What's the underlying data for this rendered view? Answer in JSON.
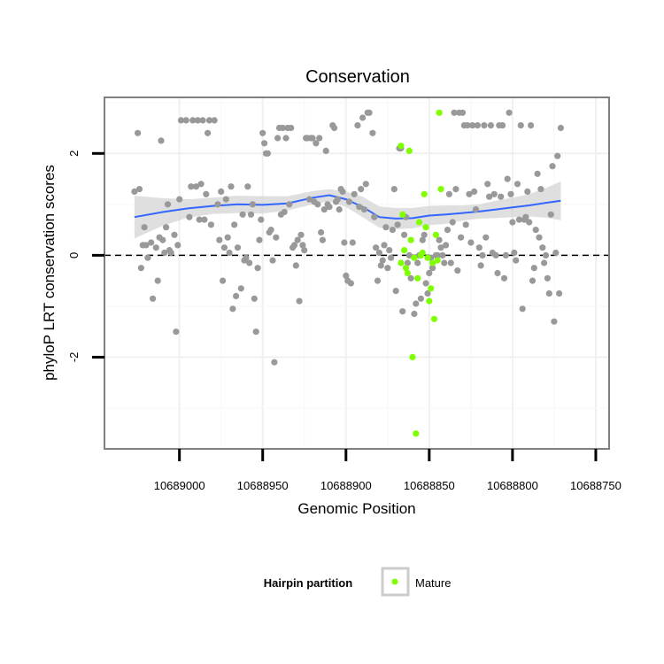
{
  "chart_data": {
    "type": "scatter",
    "title": "Conservation",
    "xlabel": "Genomic Position",
    "ylabel": "phyloP LRT conservation scores",
    "x_reversed": true,
    "xlim": [
      10689045,
      10688742
    ],
    "ylim": [
      -3.8,
      3.1
    ],
    "x_ticks": [
      10689000,
      10688950,
      10688900,
      10688850,
      10688800,
      10688750
    ],
    "x_tick_labels": [
      "10689000",
      "10688950",
      "10688900",
      "10688850",
      "10688800",
      "10688750"
    ],
    "y_ticks": [
      -2,
      0,
      2
    ],
    "y_tick_labels": [
      "-2",
      "0",
      "2"
    ],
    "reference_line_y": 0,
    "grid": true,
    "legend": {
      "title": "Hairpin partition",
      "position": "bottom",
      "entries": [
        {
          "label": "Mature",
          "color": "#7fff00"
        }
      ]
    },
    "colors": {
      "other_points": "#999999",
      "mature_points": "#7fff00",
      "smooth_line": "#3366ff",
      "confidence_band": "#d4d4d4"
    },
    "series": [
      {
        "color": "#999999",
        "points": [
          [
            10689027,
            1.25
          ],
          [
            10689025,
            2.4
          ],
          [
            10689024,
            1.3
          ],
          [
            10689023,
            -0.25
          ],
          [
            10689022,
            0.2
          ],
          [
            10689021,
            0.55
          ],
          [
            10689020,
            0.2
          ],
          [
            10689019,
            -0.05
          ],
          [
            10689017,
            0.25
          ],
          [
            10689016,
            -0.85
          ],
          [
            10689014,
            0.15
          ],
          [
            10689013,
            -0.5
          ],
          [
            10689012,
            0.35
          ],
          [
            10689011,
            2.25
          ],
          [
            10689010,
            0.3
          ],
          [
            10689009,
            0.05
          ],
          [
            10689008,
            0.55
          ],
          [
            10689007,
            1
          ],
          [
            10689006,
            0.1
          ],
          [
            10689005,
            0.05
          ],
          [
            10689003,
            0.4
          ],
          [
            10689002,
            -1.5
          ],
          [
            10689001,
            0.2
          ],
          [
            10689000,
            1.1
          ],
          [
            10688999,
            2.65
          ],
          [
            10688996,
            2.65
          ],
          [
            10688994,
            0.75
          ],
          [
            10688993,
            1.35
          ],
          [
            10688992,
            2.65
          ],
          [
            10688990,
            1.35
          ],
          [
            10688989,
            2.65
          ],
          [
            10688988,
            0.7
          ],
          [
            10688987,
            1.4
          ],
          [
            10688986,
            2.65
          ],
          [
            10688985,
            0.7
          ],
          [
            10688984,
            1.2
          ],
          [
            10688983,
            2.4
          ],
          [
            10688982,
            2.65
          ],
          [
            10688981,
            0.6
          ],
          [
            10688979,
            2.65
          ],
          [
            10688977,
            1.0
          ],
          [
            10688976,
            0.3
          ],
          [
            10688975,
            1.25
          ],
          [
            10688974,
            -0.5
          ],
          [
            10688973,
            0.15
          ],
          [
            10688972,
            1.1
          ],
          [
            10688971,
            0.35
          ],
          [
            10688970,
            0.05
          ],
          [
            10688969,
            1.35
          ],
          [
            10688968,
            -1.05
          ],
          [
            10688967,
            0.6
          ],
          [
            10688966,
            -0.8
          ],
          [
            10688965,
            0.15
          ],
          [
            10688963,
            -0.65
          ],
          [
            10688962,
            0.8
          ],
          [
            10688961,
            -0.1
          ],
          [
            10688960,
            -0.05
          ],
          [
            10688959,
            1.35
          ],
          [
            10688958,
            -0.15
          ],
          [
            10688957,
            0.8
          ],
          [
            10688956,
            1
          ],
          [
            10688955,
            -0.85
          ],
          [
            10688954,
            -1.5
          ],
          [
            10688953,
            -0.25
          ],
          [
            10688952,
            0.3
          ],
          [
            10688951,
            0.7
          ],
          [
            10688950,
            2.4
          ],
          [
            10688949,
            2.2
          ],
          [
            10688948,
            2.0
          ],
          [
            10688947,
            2.0
          ],
          [
            10688946,
            0.45
          ],
          [
            10688945,
            0.5
          ],
          [
            10688944,
            -0.1
          ],
          [
            10688943,
            -2.1
          ],
          [
            10688942,
            0.35
          ],
          [
            10688941,
            2.3
          ],
          [
            10688940,
            2.5
          ],
          [
            10688939,
            0.8
          ],
          [
            10688938,
            2.5
          ],
          [
            10688937,
            0.85
          ],
          [
            10688936,
            2.3
          ],
          [
            10688935,
            2.5
          ],
          [
            10688934,
            1.0
          ],
          [
            10688933,
            2.5
          ],
          [
            10688932,
            0.15
          ],
          [
            10688931,
            0.2
          ],
          [
            10688930,
            -0.2
          ],
          [
            10688929,
            0.3
          ],
          [
            10688928,
            -0.9
          ],
          [
            10688927,
            0.4
          ],
          [
            10688926,
            0.2
          ],
          [
            10688925,
            0.1
          ],
          [
            10688924,
            2.3
          ],
          [
            10688923,
            2.3
          ],
          [
            10688922,
            1.1
          ],
          [
            10688921,
            2.3
          ],
          [
            10688920,
            2.3
          ],
          [
            10688919,
            1.05
          ],
          [
            10688918,
            2.2
          ],
          [
            10688917,
            1.0
          ],
          [
            10688916,
            2.3
          ],
          [
            10688915,
            0.45
          ],
          [
            10688914,
            0.3
          ],
          [
            10688913,
            0.9
          ],
          [
            10688912,
            2.05
          ],
          [
            10688911,
            1.0
          ],
          [
            10688910,
            0.95
          ],
          [
            10688908,
            2.55
          ],
          [
            10688907,
            2.5
          ],
          [
            10688906,
            1.05
          ],
          [
            10688905,
            1.1
          ],
          [
            10688904,
            0.9
          ],
          [
            10688903,
            1.3
          ],
          [
            10688902,
            1.25
          ],
          [
            10688901,
            0.25
          ],
          [
            10688900,
            -0.4
          ],
          [
            10688899,
            -0.5
          ],
          [
            10688898,
            1.05
          ],
          [
            10688897,
            -0.55
          ],
          [
            10688896,
            0.25
          ],
          [
            10688895,
            1.2
          ],
          [
            10688893,
            2.55
          ],
          [
            10688892,
            0.95
          ],
          [
            10688891,
            1.3
          ],
          [
            10688890,
            2.7
          ],
          [
            10688889,
            0.9
          ],
          [
            10688888,
            1.4
          ],
          [
            10688887,
            2.8
          ],
          [
            10688886,
            2.8
          ],
          [
            10688884,
            2.4
          ],
          [
            10688883,
            0.75
          ],
          [
            10688882,
            0.15
          ],
          [
            10688881,
            -0.5
          ],
          [
            10688880,
            0.05
          ],
          [
            10688879,
            -0.2
          ],
          [
            10688878,
            -0.1
          ],
          [
            10688877,
            0.2
          ],
          [
            10688876,
            0.55
          ],
          [
            10688875,
            -0.25
          ],
          [
            10688874,
            0.1
          ],
          [
            10688873,
            -0.05
          ],
          [
            10688872,
            0.5
          ],
          [
            10688871,
            1.3
          ],
          [
            10688870,
            -0.7
          ],
          [
            10688869,
            0.6
          ],
          [
            10688868,
            2.1
          ],
          [
            10688867,
            2.1
          ],
          [
            10688866,
            -1.1
          ],
          [
            10688865,
            0.4
          ],
          [
            10688864,
            0.75
          ],
          [
            10688863,
            -0.15
          ],
          [
            10688862,
            0.0
          ],
          [
            10688861,
            -0.45
          ],
          [
            10688859,
            -1.15
          ],
          [
            10688858,
            -0.95
          ],
          [
            10688857,
            -0.15
          ],
          [
            10688856,
            0.0
          ],
          [
            10688855,
            -0.85
          ],
          [
            10688854,
            0.3
          ],
          [
            10688853,
            0.4
          ],
          [
            10688852,
            -0.55
          ],
          [
            10688851,
            -0.75
          ],
          [
            10688850,
            -0.35
          ],
          [
            10688849,
            -0.05
          ],
          [
            10688848,
            -0.25
          ],
          [
            10688846,
            0.0
          ],
          [
            10688845,
            0.0
          ],
          [
            10688844,
            0.3
          ],
          [
            10688843,
            0.15
          ],
          [
            10688842,
            0.0
          ],
          [
            10688841,
            -0.15
          ],
          [
            10688840,
            0.2
          ],
          [
            10688839,
            0.5
          ],
          [
            10688838,
            1.2
          ],
          [
            10688837,
            -0.15
          ],
          [
            10688836,
            0.65
          ],
          [
            10688835,
            2.8
          ],
          [
            10688834,
            1.3
          ],
          [
            10688833,
            -0.3
          ],
          [
            10688832,
            2.8
          ],
          [
            10688831,
            0.35
          ],
          [
            10688830,
            2.8
          ],
          [
            10688829,
            2.55
          ],
          [
            10688828,
            0.6
          ],
          [
            10688827,
            2.55
          ],
          [
            10688826,
            1.2
          ],
          [
            10688825,
            0.25
          ],
          [
            10688824,
            2.55
          ],
          [
            10688823,
            1.25
          ],
          [
            10688822,
            0.9
          ],
          [
            10688821,
            2.55
          ],
          [
            10688820,
            0.15
          ],
          [
            10688819,
            -0.2
          ],
          [
            10688818,
            0.0
          ],
          [
            10688817,
            2.55
          ],
          [
            10688816,
            0.35
          ],
          [
            10688815,
            1.4
          ],
          [
            10688814,
            1.15
          ],
          [
            10688813,
            2.55
          ],
          [
            10688812,
            0.05
          ],
          [
            10688811,
            1.2
          ],
          [
            10688810,
            0.0
          ],
          [
            10688809,
            -0.35
          ],
          [
            10688808,
            2.55
          ],
          [
            10688807,
            1.15
          ],
          [
            10688806,
            2.55
          ],
          [
            10688805,
            -0.45
          ],
          [
            10688804,
            0.0
          ],
          [
            10688803,
            1.5
          ],
          [
            10688802,
            2.8
          ],
          [
            10688801,
            1.2
          ],
          [
            10688800,
            0.65
          ],
          [
            10688799,
            0.05
          ],
          [
            10688798,
            -0.1
          ],
          [
            10688797,
            1.4
          ],
          [
            10688796,
            0.7
          ],
          [
            10688795,
            2.55
          ],
          [
            10688794,
            -1.05
          ],
          [
            10688793,
            0.7
          ],
          [
            10688792,
            0.75
          ],
          [
            10688791,
            1.25
          ],
          [
            10688790,
            0.65
          ],
          [
            10688789,
            2.55
          ],
          [
            10688788,
            -0.5
          ],
          [
            10688787,
            -0.25
          ],
          [
            10688786,
            0.5
          ],
          [
            10688785,
            1.6
          ],
          [
            10688784,
            0.35
          ],
          [
            10688783,
            1.3
          ],
          [
            10688782,
            0.15
          ],
          [
            10688781,
            -0.15
          ],
          [
            10688780,
            0.0
          ],
          [
            10688779,
            -0.45
          ],
          [
            10688778,
            -0.75
          ],
          [
            10688777,
            0.8
          ],
          [
            10688776,
            1.75
          ],
          [
            10688775,
            -1.3
          ],
          [
            10688774,
            0.05
          ],
          [
            10688773,
            1.95
          ],
          [
            10688772,
            -0.75
          ],
          [
            10688771,
            2.5
          ]
        ]
      },
      {
        "name": "Mature",
        "color": "#7fff00",
        "points": [
          [
            10688867,
            2.15
          ],
          [
            10688867,
            -0.15
          ],
          [
            10688866,
            0.8
          ],
          [
            10688865,
            0.1
          ],
          [
            10688864,
            -0.25
          ],
          [
            10688863,
            -0.35
          ],
          [
            10688862,
            2.05
          ],
          [
            10688861,
            0.3
          ],
          [
            10688860,
            -2.0
          ],
          [
            10688859,
            -0.05
          ],
          [
            10688858,
            -3.5
          ],
          [
            10688857,
            -0.45
          ],
          [
            10688856,
            0.65
          ],
          [
            10688855,
            0.0
          ],
          [
            10688854,
            0.05
          ],
          [
            10688853,
            1.2
          ],
          [
            10688852,
            0.55
          ],
          [
            10688851,
            -0.05
          ],
          [
            10688850,
            -0.9
          ],
          [
            10688849,
            -0.65
          ],
          [
            10688848,
            -0.15
          ],
          [
            10688847,
            -1.25
          ],
          [
            10688846,
            0.4
          ],
          [
            10688845,
            -0.1
          ],
          [
            10688844,
            2.8
          ],
          [
            10688843,
            1.3
          ]
        ]
      }
    ],
    "smooth": {
      "x": [
        10689027,
        10689010,
        10688995,
        10688980,
        10688965,
        10688950,
        10688935,
        10688920,
        10688910,
        10688900,
        10688890,
        10688880,
        10688870,
        10688860,
        10688850,
        10688840,
        10688830,
        10688820,
        10688810,
        10688800,
        10688790,
        10688780,
        10688771
      ],
      "y": [
        0.75,
        0.85,
        0.92,
        0.97,
        1.0,
        0.99,
        1.02,
        1.13,
        1.18,
        1.1,
        0.95,
        0.75,
        0.72,
        0.73,
        0.78,
        0.8,
        0.83,
        0.86,
        0.9,
        0.94,
        0.98,
        1.03,
        1.07
      ],
      "se_upper": [
        1.17,
        1.12,
        1.1,
        1.13,
        1.17,
        1.16,
        1.16,
        1.26,
        1.3,
        1.25,
        1.15,
        0.96,
        0.93,
        0.93,
        0.97,
        0.98,
        0.98,
        1.0,
        1.07,
        1.13,
        1.2,
        1.32,
        1.45
      ],
      "se_lower": [
        0.33,
        0.58,
        0.74,
        0.81,
        0.83,
        0.82,
        0.88,
        1.0,
        1.06,
        0.95,
        0.75,
        0.54,
        0.51,
        0.53,
        0.59,
        0.62,
        0.68,
        0.72,
        0.73,
        0.75,
        0.76,
        0.74,
        0.69
      ]
    }
  }
}
